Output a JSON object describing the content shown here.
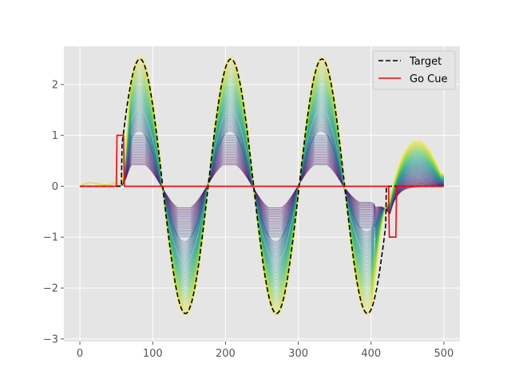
{
  "chart_data": {
    "type": "line",
    "title": "",
    "xlabel": "",
    "ylabel": "",
    "xlim": [
      -22,
      522
    ],
    "ylim": [
      -3.05,
      2.75
    ],
    "x_ticks": [
      0,
      100,
      200,
      300,
      400,
      500
    ],
    "y_ticks": [
      -3,
      -2,
      -1,
      0,
      1,
      2
    ],
    "x_tick_labels": [
      "0",
      "100",
      "200",
      "300",
      "400",
      "500"
    ],
    "y_tick_labels": [
      "−3",
      "−2",
      "−1",
      "0",
      "1",
      "2"
    ],
    "grid": true,
    "background": "#e5e5e5",
    "legend_position": "top-right",
    "legend": [
      {
        "label": "Target",
        "color": "#000000",
        "style": "dashed"
      },
      {
        "label": "Go Cue",
        "color": "#ff0000",
        "style": "solid"
      }
    ],
    "target": {
      "description_points": {
        "x": [
          0,
          60,
          82,
          110,
          145,
          180,
          208,
          240,
          270,
          300,
          333,
          365,
          397,
          420,
          430,
          500
        ],
        "y": [
          0,
          0,
          2.5,
          0,
          -2.5,
          0,
          2.5,
          0,
          -2.5,
          0,
          2.5,
          0,
          -2.5,
          0,
          0,
          0
        ]
      }
    },
    "go_cue": {
      "x": [
        0,
        50,
        51,
        60,
        61,
        424,
        425,
        434,
        435,
        500
      ],
      "y": [
        0,
        0,
        1,
        1,
        0,
        0,
        -1,
        -1,
        0,
        0
      ]
    },
    "trajectories": {
      "count": 60,
      "colormap": "viridis",
      "amplitude_range": [
        0.45,
        2.55
      ],
      "tail_bump_range": [
        0.0,
        0.78
      ]
    }
  }
}
